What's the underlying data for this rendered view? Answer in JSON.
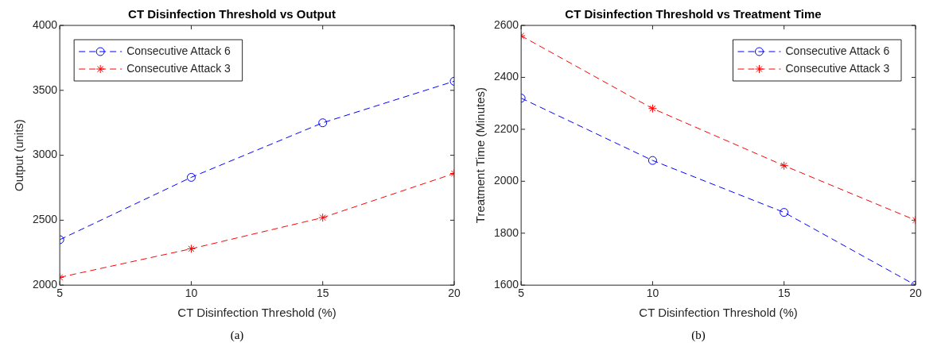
{
  "chart_data": [
    {
      "type": "line",
      "title": "CT Disinfection Threshold vs Output",
      "xlabel": "CT Disinfection Threshold (%)",
      "ylabel": "Output (units)",
      "x": [
        5,
        10,
        15,
        20
      ],
      "xlim": [
        5,
        20
      ],
      "xticks": [
        5,
        10,
        15,
        20
      ],
      "ylim": [
        2000,
        4000
      ],
      "yticks": [
        2000,
        2500,
        3000,
        3500,
        4000
      ],
      "series": [
        {
          "name": "Consecutive Attack 6",
          "color": "#0000ff",
          "marker": "circle",
          "values": [
            2350,
            2830,
            3250,
            3570
          ]
        },
        {
          "name": "Consecutive Attack 3",
          "color": "#ff0000",
          "marker": "cross",
          "values": [
            2060,
            2280,
            2520,
            2860
          ]
        }
      ],
      "line_style": "dashed",
      "grid": false,
      "legend": "top left",
      "annotations": [
        "(a)"
      ]
    },
    {
      "type": "line",
      "title": "CT Disinfection Threshold vs Treatment Time",
      "xlabel": "CT Disinfection Threshold (%)",
      "ylabel": "Treatment Time (Minutes)",
      "x": [
        5,
        10,
        15,
        20
      ],
      "xlim": [
        5,
        20
      ],
      "xticks": [
        5,
        10,
        15,
        20
      ],
      "ylim": [
        1600,
        2600
      ],
      "yticks": [
        1600,
        1800,
        2000,
        2200,
        2400,
        2600
      ],
      "series": [
        {
          "name": "Consecutive Attack 6",
          "color": "#0000ff",
          "marker": "circle",
          "values": [
            2320,
            2080,
            1880,
            1600
          ]
        },
        {
          "name": "Consecutive Attack 3",
          "color": "#ff0000",
          "marker": "cross",
          "values": [
            2560,
            2280,
            2060,
            1850
          ]
        }
      ],
      "line_style": "dashed",
      "grid": false,
      "legend": "top right",
      "annotations": [
        "(b)"
      ]
    }
  ]
}
